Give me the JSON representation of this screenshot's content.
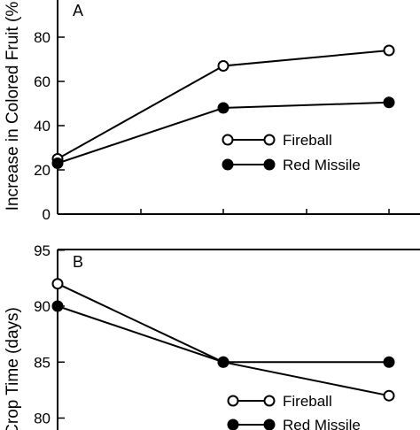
{
  "colors": {
    "ink": "#000000",
    "background": "#ffffff",
    "open_marker_fill": "#ffffff",
    "filled_marker_fill": "#000000"
  },
  "chart_data": [
    {
      "type": "line",
      "panel_label": "A",
      "ylabel": "Increase in Colored Fruit (%",
      "xlabel": "",
      "x": [
        1,
        2,
        3
      ],
      "ylim": [
        0,
        90
      ],
      "yticks": [
        0,
        20,
        40,
        60,
        80
      ],
      "ytick_labels": [
        "0",
        "20",
        "40",
        "60",
        "80"
      ],
      "grid": false,
      "legend": "center-right",
      "series": [
        {
          "name": "Fireball",
          "marker": "open-circle",
          "values": [
            25,
            67,
            74
          ]
        },
        {
          "name": "Red Missile",
          "marker": "filled-circle",
          "values": [
            23,
            48,
            50.5
          ]
        }
      ]
    },
    {
      "type": "line",
      "panel_label": "B",
      "ylabel": "Crop Time (days)",
      "xlabel": "",
      "x": [
        1,
        2,
        3
      ],
      "ylim": [
        78.5,
        95
      ],
      "yticks": [
        80,
        85,
        90,
        95
      ],
      "ytick_labels": [
        "80",
        "85",
        "90",
        "95"
      ],
      "grid": false,
      "legend": "bottom-right",
      "series": [
        {
          "name": "Fireball",
          "marker": "open-circle",
          "values": [
            92,
            85,
            82
          ]
        },
        {
          "name": "Red Missile",
          "marker": "filled-circle",
          "values": [
            90,
            85,
            85
          ]
        }
      ]
    }
  ]
}
